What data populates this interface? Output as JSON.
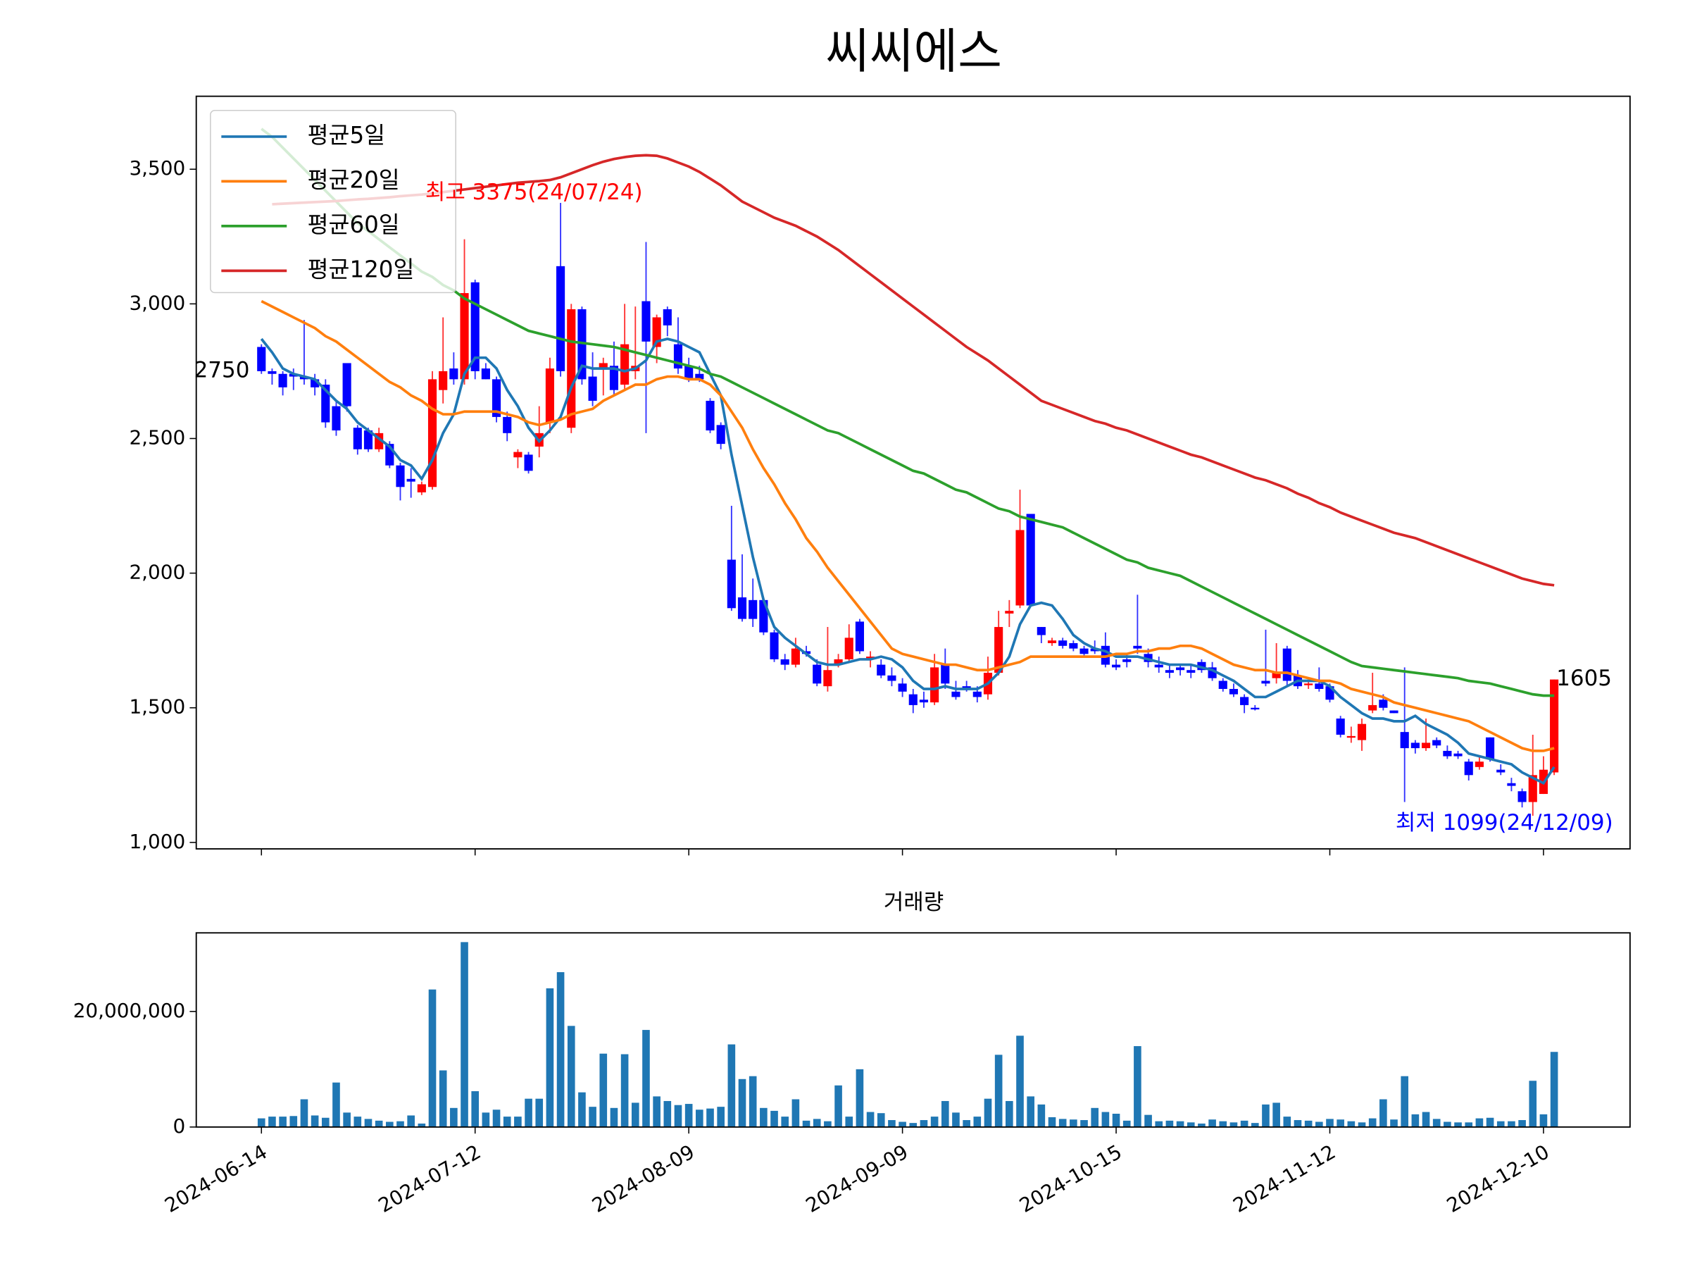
{
  "chart_data": {
    "type": "candlestick",
    "title": "씨씨에스",
    "x": [
      "2024-06-14",
      "2024-06-17",
      "2024-06-18",
      "2024-06-19",
      "2024-06-20",
      "2024-06-21",
      "2024-06-24",
      "2024-06-25",
      "2024-06-26",
      "2024-06-27",
      "2024-06-28",
      "2024-07-01",
      "2024-07-02",
      "2024-07-03",
      "2024-07-04",
      "2024-07-05",
      "2024-07-08",
      "2024-07-09",
      "2024-07-10",
      "2024-07-11",
      "2024-07-12",
      "2024-07-15",
      "2024-07-16",
      "2024-07-17",
      "2024-07-18",
      "2024-07-19",
      "2024-07-22",
      "2024-07-23",
      "2024-07-24",
      "2024-07-25",
      "2024-07-26",
      "2024-07-29",
      "2024-07-30",
      "2024-07-31",
      "2024-08-01",
      "2024-08-02",
      "2024-08-05",
      "2024-08-06",
      "2024-08-07",
      "2024-08-08",
      "2024-08-09",
      "2024-08-12",
      "2024-08-13",
      "2024-08-14",
      "2024-08-16",
      "2024-08-19",
      "2024-08-20",
      "2024-08-21",
      "2024-08-22",
      "2024-08-23",
      "2024-08-26",
      "2024-08-27",
      "2024-08-28",
      "2024-08-29",
      "2024-08-30",
      "2024-09-02",
      "2024-09-03",
      "2024-09-04",
      "2024-09-05",
      "2024-09-06",
      "2024-09-09",
      "2024-09-10",
      "2024-09-11",
      "2024-09-12",
      "2024-09-13",
      "2024-09-19",
      "2024-09-20",
      "2024-09-23",
      "2024-09-24",
      "2024-09-25",
      "2024-09-26",
      "2024-09-27",
      "2024-09-30",
      "2024-10-02",
      "2024-10-04",
      "2024-10-07",
      "2024-10-08",
      "2024-10-10",
      "2024-10-11",
      "2024-10-14",
      "2024-10-15",
      "2024-10-16",
      "2024-10-17",
      "2024-10-18",
      "2024-10-21",
      "2024-10-22",
      "2024-10-23",
      "2024-10-24",
      "2024-10-25",
      "2024-10-28",
      "2024-10-29",
      "2024-10-30",
      "2024-10-31",
      "2024-11-01",
      "2024-11-04",
      "2024-11-05",
      "2024-11-06",
      "2024-11-07",
      "2024-11-08",
      "2024-11-11",
      "2024-11-12",
      "2024-11-13",
      "2024-11-14",
      "2024-11-15",
      "2024-11-18",
      "2024-11-19",
      "2024-11-20",
      "2024-11-21",
      "2024-11-22",
      "2024-11-25",
      "2024-11-26",
      "2024-11-27",
      "2024-11-28",
      "2024-11-29",
      "2024-12-02",
      "2024-12-03",
      "2024-12-04",
      "2024-12-05",
      "2024-12-06",
      "2024-12-09",
      "2024-12-10",
      "2024-12-11"
    ],
    "open": [
      2840,
      2750,
      2740,
      2740,
      2730,
      2720,
      2700,
      2620,
      2780,
      2540,
      2530,
      2460,
      2480,
      2400,
      2350,
      2300,
      2320,
      2680,
      2760,
      2720,
      3080,
      2760,
      2720,
      2580,
      2430,
      2440,
      2470,
      2560,
      3140,
      2540,
      2980,
      2730,
      2760,
      2770,
      2700,
      2750,
      3010,
      2840,
      2980,
      2850,
      2770,
      2740,
      2640,
      2550,
      2050,
      1910,
      1900,
      1900,
      1780,
      1680,
      1660,
      1710,
      1660,
      1580,
      1660,
      1680,
      1820,
      1680,
      1660,
      1620,
      1590,
      1550,
      1530,
      1520,
      1660,
      1560,
      1580,
      1560,
      1550,
      1630,
      1850,
      1880,
      2220,
      1800,
      1740,
      1750,
      1740,
      1720,
      1720,
      1730,
      1660,
      1680,
      1730,
      1700,
      1660,
      1640,
      1650,
      1640,
      1670,
      1650,
      1600,
      1570,
      1540,
      1500,
      1600,
      1610,
      1720,
      1620,
      1590,
      1590,
      1580,
      1460,
      1390,
      1380,
      1490,
      1530,
      1490,
      1410,
      1370,
      1350,
      1380,
      1340,
      1330,
      1300,
      1280,
      1390,
      1270,
      1220,
      1190,
      1150,
      1180,
      1260
    ],
    "high": [
      2850,
      2760,
      2750,
      2760,
      2940,
      2740,
      2720,
      2640,
      2780,
      2550,
      2540,
      2540,
      2490,
      2410,
      2390,
      2340,
      2750,
      2950,
      2820,
      3240,
      3090,
      2780,
      2730,
      2600,
      2460,
      2450,
      2620,
      2800,
      3375,
      3000,
      2990,
      2820,
      2800,
      2860,
      3000,
      2990,
      3230,
      2960,
      2990,
      2950,
      2800,
      2770,
      2650,
      2560,
      2250,
      2070,
      1980,
      1910,
      1790,
      1700,
      1760,
      1730,
      1680,
      1800,
      1700,
      1810,
      1830,
      1710,
      1680,
      1650,
      1610,
      1570,
      1560,
      1700,
      1720,
      1600,
      1600,
      1580,
      1690,
      1860,
      1900,
      2310,
      2220,
      1800,
      1760,
      1760,
      1750,
      1730,
      1750,
      1780,
      1680,
      1700,
      1920,
      1720,
      1690,
      1660,
      1660,
      1660,
      1680,
      1670,
      1610,
      1590,
      1550,
      1510,
      1790,
      1740,
      1730,
      1640,
      1600,
      1650,
      1590,
      1470,
      1430,
      1460,
      1630,
      1550,
      1490,
      1650,
      1380,
      1460,
      1390,
      1360,
      1340,
      1310,
      1320,
      1390,
      1290,
      1240,
      1200,
      1400,
      1320,
      1605
    ],
    "low": [
      2740,
      2700,
      2660,
      2680,
      2700,
      2660,
      2540,
      2510,
      2600,
      2440,
      2450,
      2450,
      2390,
      2270,
      2280,
      2290,
      2310,
      2630,
      2700,
      2700,
      2720,
      2720,
      2560,
      2490,
      2390,
      2370,
      2430,
      2520,
      2730,
      2520,
      2700,
      2620,
      2660,
      2660,
      2680,
      2720,
      2520,
      2780,
      2880,
      2740,
      2710,
      2710,
      2520,
      2460,
      1860,
      1820,
      1800,
      1770,
      1670,
      1640,
      1650,
      1690,
      1580,
      1560,
      1650,
      1670,
      1700,
      1650,
      1610,
      1580,
      1540,
      1480,
      1500,
      1510,
      1570,
      1530,
      1560,
      1520,
      1530,
      1620,
      1800,
      1870,
      1880,
      1740,
      1730,
      1720,
      1710,
      1690,
      1700,
      1650,
      1640,
      1650,
      1700,
      1650,
      1630,
      1610,
      1620,
      1610,
      1630,
      1600,
      1560,
      1540,
      1480,
      1490,
      1580,
      1590,
      1580,
      1570,
      1570,
      1560,
      1520,
      1390,
      1370,
      1340,
      1480,
      1490,
      1480,
      1150,
      1330,
      1340,
      1350,
      1310,
      1310,
      1230,
      1270,
      1300,
      1250,
      1190,
      1130,
      1099,
      1180,
      1250
    ],
    "close": [
      2750,
      2740,
      2690,
      2730,
      2720,
      2690,
      2560,
      2530,
      2620,
      2460,
      2460,
      2520,
      2400,
      2320,
      2340,
      2330,
      2720,
      2750,
      2720,
      3040,
      2750,
      2720,
      2580,
      2520,
      2450,
      2380,
      2520,
      2760,
      2750,
      2980,
      2720,
      2640,
      2780,
      2680,
      2850,
      2770,
      2860,
      2950,
      2920,
      2760,
      2720,
      2720,
      2530,
      2480,
      1870,
      1830,
      1830,
      1780,
      1680,
      1660,
      1720,
      1700,
      1590,
      1640,
      1680,
      1760,
      1710,
      1690,
      1620,
      1600,
      1560,
      1510,
      1520,
      1650,
      1590,
      1540,
      1570,
      1540,
      1630,
      1800,
      1860,
      2160,
      1880,
      1770,
      1750,
      1730,
      1720,
      1700,
      1710,
      1660,
      1650,
      1670,
      1720,
      1670,
      1650,
      1630,
      1640,
      1630,
      1640,
      1610,
      1570,
      1550,
      1510,
      1495,
      1590,
      1630,
      1600,
      1580,
      1590,
      1570,
      1530,
      1400,
      1395,
      1440,
      1510,
      1500,
      1480,
      1350,
      1350,
      1370,
      1360,
      1320,
      1320,
      1250,
      1300,
      1310,
      1260,
      1210,
      1150,
      1250,
      1270,
      1605
    ],
    "up_color": "red",
    "down_color": "blue",
    "series": [
      {
        "name": "평균5일",
        "color": "#1f77b4",
        "values": [
          2870,
          2820,
          2760,
          2740,
          2730,
          2720,
          2680,
          2640,
          2610,
          2560,
          2530,
          2500,
          2470,
          2420,
          2400,
          2350,
          2420,
          2520,
          2590,
          2740,
          2800,
          2800,
          2760,
          2680,
          2620,
          2540,
          2490,
          2530,
          2580,
          2690,
          2770,
          2760,
          2760,
          2760,
          2750,
          2760,
          2790,
          2860,
          2870,
          2860,
          2840,
          2820,
          2740,
          2660,
          2440,
          2250,
          2060,
          1900,
          1800,
          1760,
          1730,
          1700,
          1670,
          1660,
          1660,
          1670,
          1680,
          1680,
          1690,
          1680,
          1650,
          1600,
          1570,
          1570,
          1580,
          1570,
          1570,
          1570,
          1590,
          1630,
          1690,
          1810,
          1880,
          1890,
          1880,
          1830,
          1770,
          1740,
          1720,
          1710,
          1690,
          1690,
          1690,
          1680,
          1670,
          1660,
          1660,
          1660,
          1650,
          1640,
          1620,
          1600,
          1570,
          1540,
          1540,
          1560,
          1580,
          1600,
          1600,
          1600,
          1580,
          1540,
          1510,
          1480,
          1460,
          1460,
          1450,
          1450,
          1470,
          1440,
          1420,
          1400,
          1370,
          1330,
          1320,
          1310,
          1300,
          1290,
          1260,
          1240,
          1220,
          1280
        ]
      },
      {
        "name": "평균20일",
        "color": "#ff7f0e",
        "values": [
          3010,
          2990,
          2970,
          2950,
          2930,
          2910,
          2880,
          2860,
          2830,
          2800,
          2770,
          2740,
          2710,
          2690,
          2660,
          2640,
          2610,
          2590,
          2590,
          2600,
          2600,
          2600,
          2600,
          2590,
          2580,
          2560,
          2550,
          2560,
          2570,
          2590,
          2600,
          2610,
          2640,
          2660,
          2680,
          2700,
          2700,
          2720,
          2730,
          2730,
          2720,
          2720,
          2700,
          2660,
          2600,
          2540,
          2460,
          2390,
          2330,
          2260,
          2200,
          2130,
          2080,
          2020,
          1970,
          1920,
          1870,
          1820,
          1770,
          1720,
          1700,
          1690,
          1680,
          1670,
          1660,
          1660,
          1650,
          1640,
          1640,
          1650,
          1660,
          1670,
          1690,
          1690,
          1690,
          1690,
          1690,
          1690,
          1690,
          1690,
          1700,
          1700,
          1710,
          1710,
          1720,
          1720,
          1730,
          1730,
          1720,
          1700,
          1680,
          1660,
          1650,
          1640,
          1640,
          1630,
          1630,
          1620,
          1610,
          1600,
          1600,
          1590,
          1570,
          1560,
          1550,
          1540,
          1520,
          1510,
          1500,
          1490,
          1480,
          1470,
          1460,
          1450,
          1430,
          1410,
          1390,
          1370,
          1350,
          1340,
          1340,
          1350
        ]
      },
      {
        "name": "평균60일",
        "color": "#2ca02c",
        "values": [
          3650,
          3620,
          3580,
          3540,
          3500,
          3460,
          3420,
          3380,
          3340,
          3300,
          3270,
          3240,
          3210,
          3180,
          3150,
          3120,
          3100,
          3070,
          3050,
          3020,
          3000,
          2980,
          2960,
          2940,
          2920,
          2900,
          2890,
          2880,
          2870,
          2860,
          2855,
          2850,
          2845,
          2840,
          2830,
          2820,
          2810,
          2800,
          2790,
          2780,
          2770,
          2760,
          2740,
          2730,
          2710,
          2690,
          2670,
          2650,
          2630,
          2610,
          2590,
          2570,
          2550,
          2530,
          2520,
          2500,
          2480,
          2460,
          2440,
          2420,
          2400,
          2380,
          2370,
          2350,
          2330,
          2310,
          2300,
          2280,
          2260,
          2240,
          2230,
          2210,
          2200,
          2190,
          2180,
          2170,
          2150,
          2130,
          2110,
          2090,
          2070,
          2050,
          2040,
          2020,
          2010,
          2000,
          1990,
          1970,
          1950,
          1930,
          1910,
          1890,
          1870,
          1850,
          1830,
          1810,
          1790,
          1770,
          1750,
          1730,
          1710,
          1690,
          1670,
          1655,
          1650,
          1645,
          1640,
          1635,
          1630,
          1625,
          1620,
          1615,
          1610,
          1600,
          1595,
          1590,
          1580,
          1570,
          1560,
          1550,
          1545,
          1545
        ]
      },
      {
        "name": "평균120일",
        "color": "#d62728",
        "values": [
          null,
          3370,
          3372,
          3374,
          3376,
          3378,
          3380,
          3382,
          3385,
          3388,
          3390,
          3393,
          3396,
          3400,
          3403,
          3406,
          3410,
          3415,
          3420,
          3425,
          3430,
          3435,
          3440,
          3445,
          3450,
          3453,
          3456,
          3460,
          3470,
          3485,
          3500,
          3515,
          3528,
          3538,
          3545,
          3550,
          3552,
          3550,
          3540,
          3525,
          3510,
          3490,
          3465,
          3440,
          3410,
          3380,
          3360,
          3340,
          3320,
          3305,
          3290,
          3270,
          3250,
          3225,
          3200,
          3170,
          3140,
          3110,
          3080,
          3050,
          3020,
          2990,
          2960,
          2930,
          2900,
          2870,
          2840,
          2815,
          2790,
          2760,
          2730,
          2700,
          2670,
          2640,
          2625,
          2610,
          2595,
          2580,
          2565,
          2555,
          2540,
          2530,
          2515,
          2500,
          2485,
          2470,
          2455,
          2440,
          2430,
          2415,
          2400,
          2385,
          2370,
          2355,
          2345,
          2330,
          2315,
          2295,
          2280,
          2260,
          2245,
          2225,
          2210,
          2195,
          2180,
          2165,
          2150,
          2140,
          2130,
          2115,
          2100,
          2085,
          2070,
          2055,
          2040,
          2025,
          2010,
          1995,
          1980,
          1970,
          1960,
          1955
        ]
      }
    ],
    "legend": "upper left",
    "xlim": [
      -6.1,
      128.1
    ],
    "xticks": [
      0,
      20,
      40,
      60,
      80,
      100,
      120
    ],
    "ylim": [
      976,
      3771
    ],
    "yticks": [
      {
        "value": 1000,
        "label": "1,000"
      },
      {
        "value": 1500,
        "label": "1,500"
      },
      {
        "value": 2000,
        "label": "2,000"
      },
      {
        "value": 2500,
        "label": "2,500"
      },
      {
        "value": 3000,
        "label": "3,000"
      },
      {
        "value": 3500,
        "label": "3,500"
      }
    ],
    "annotations": [
      {
        "text": "최고 3375(24/07/24)",
        "color": "red"
      },
      {
        "text": "최저 1099(24/12/09)",
        "color": "blue"
      }
    ],
    "volume": {
      "type": "bar",
      "title": "거래량",
      "color": "#1f77b4",
      "values": [
        1500000,
        1800000,
        1800000,
        1900000,
        4800000,
        2000000,
        1600000,
        7700000,
        2500000,
        1800000,
        1400000,
        1100000,
        900000,
        1000000,
        2000000,
        600000,
        23800000,
        9800000,
        3300000,
        32000000,
        6200000,
        2500000,
        3000000,
        1800000,
        1800000,
        4900000,
        4900000,
        24000000,
        26800000,
        17500000,
        6000000,
        3500000,
        12700000,
        3300000,
        12600000,
        4200000,
        16800000,
        5300000,
        4500000,
        3800000,
        4000000,
        3000000,
        3200000,
        3500000,
        14300000,
        8300000,
        8800000,
        3300000,
        2800000,
        1800000,
        4800000,
        1100000,
        1400000,
        1000000,
        7200000,
        1800000,
        10000000,
        2600000,
        2400000,
        1200000,
        900000,
        700000,
        1200000,
        1800000,
        4500000,
        2500000,
        1200000,
        1800000,
        4900000,
        12500000,
        4500000,
        15800000,
        5300000,
        3900000,
        1700000,
        1400000,
        1300000,
        1200000,
        3300000,
        2600000,
        2300000,
        1100000,
        14000000,
        2100000,
        1000000,
        1100000,
        1000000,
        800000,
        600000,
        1300000,
        1000000,
        800000,
        1100000,
        700000,
        3900000,
        4200000,
        1800000,
        1200000,
        1100000,
        900000,
        1400000,
        1300000,
        1000000,
        800000,
        1500000,
        4800000,
        1300000,
        8800000,
        2200000,
        2600000,
        1400000,
        900000,
        800000,
        800000,
        1500000,
        1600000,
        1000000,
        1000000,
        1200000,
        8000000,
        2200000,
        13000000
      ],
      "ylim": [
        0,
        33600000
      ],
      "yticks": [
        0,
        {
          "value": 20000000,
          "label": "20,000,000"
        }
      ]
    }
  }
}
